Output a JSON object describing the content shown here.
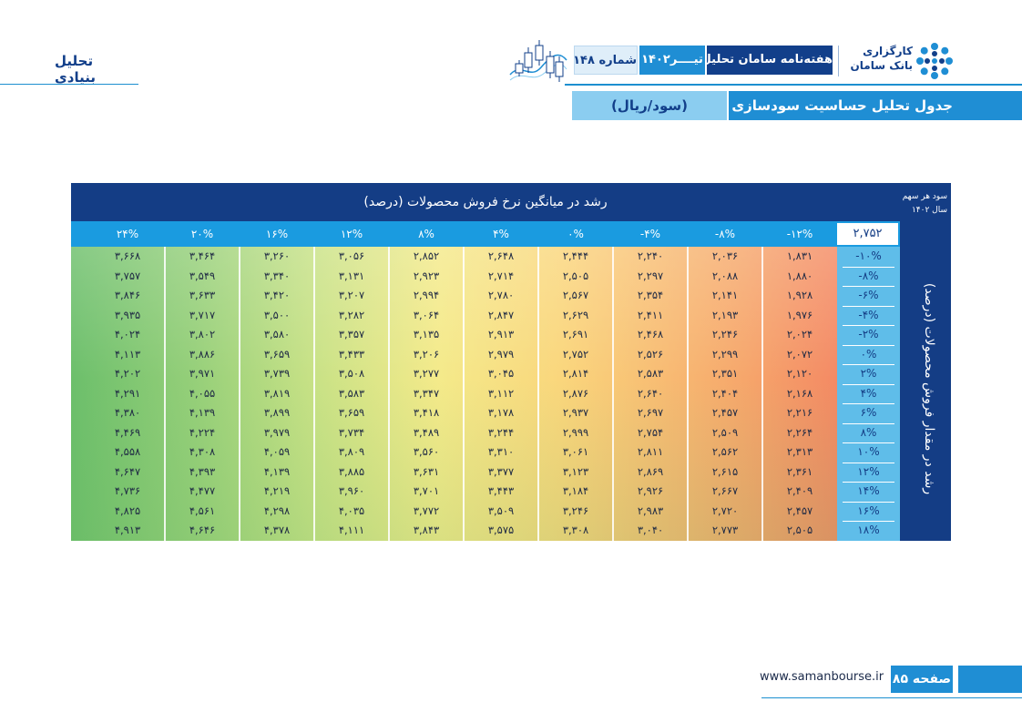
{
  "header": {
    "section_label": "تحلیل بنیادی",
    "logo_line1": "کارگزاری",
    "logo_line2": "بانک سامان",
    "weekly_title": "هفته‌نامه سامان تحلیل",
    "month": "تیــــر۱۴۰۲",
    "issue": "شماره ۱۴۸",
    "doc_title": "جدول تحلیل حساسیت سودسازی",
    "unit": "(سود/ریال)"
  },
  "table": {
    "top_title": "رشد در میانگین نرخ فروش محصولات (درصد)",
    "eps_label_line1": "سود هر سهم",
    "eps_label_line2": "سال ۱۴۰۲",
    "side_title": "رشد در مقدار فروش محصولات (درصد)",
    "base_value": "۲,۷۵۲",
    "col_headers": [
      "-۱۲%",
      "-۸%",
      "-۴%",
      "۰%",
      "۴%",
      "۸%",
      "۱۲%",
      "۱۶%",
      "۲۰%",
      "۲۴%"
    ],
    "row_headers": [
      "-۱۰%",
      "-۸%",
      "-۶%",
      "-۴%",
      "-۲%",
      "۰%",
      "۲%",
      "۴%",
      "۶%",
      "۸%",
      "۱۰%",
      "۱۲%",
      "۱۴%",
      "۱۶%",
      "۱۸%"
    ],
    "rows": [
      [
        "۱,۸۳۱",
        "۲,۰۳۶",
        "۲,۲۴۰",
        "۲,۴۴۴",
        "۲,۶۴۸",
        "۲,۸۵۲",
        "۳,۰۵۶",
        "۳,۲۶۰",
        "۳,۴۶۴",
        "۳,۶۶۸"
      ],
      [
        "۱,۸۸۰",
        "۲,۰۸۸",
        "۲,۲۹۷",
        "۲,۵۰۵",
        "۲,۷۱۴",
        "۲,۹۲۳",
        "۳,۱۳۱",
        "۳,۳۴۰",
        "۳,۵۴۹",
        "۳,۷۵۷"
      ],
      [
        "۱,۹۲۸",
        "۲,۱۴۱",
        "۲,۳۵۴",
        "۲,۵۶۷",
        "۲,۷۸۰",
        "۲,۹۹۴",
        "۳,۲۰۷",
        "۳,۴۲۰",
        "۳,۶۳۳",
        "۳,۸۴۶"
      ],
      [
        "۱,۹۷۶",
        "۲,۱۹۳",
        "۲,۴۱۱",
        "۲,۶۲۹",
        "۲,۸۴۷",
        "۳,۰۶۴",
        "۳,۲۸۲",
        "۳,۵۰۰",
        "۳,۷۱۷",
        "۳,۹۳۵"
      ],
      [
        "۲,۰۲۴",
        "۲,۲۴۶",
        "۲,۴۶۸",
        "۲,۶۹۱",
        "۲,۹۱۳",
        "۳,۱۳۵",
        "۳,۳۵۷",
        "۳,۵۸۰",
        "۳,۸۰۲",
        "۴,۰۲۴"
      ],
      [
        "۲,۰۷۲",
        "۲,۲۹۹",
        "۲,۵۲۶",
        "۲,۷۵۲",
        "۲,۹۷۹",
        "۳,۲۰۶",
        "۳,۴۳۳",
        "۳,۶۵۹",
        "۳,۸۸۶",
        "۴,۱۱۳"
      ],
      [
        "۲,۱۲۰",
        "۲,۳۵۱",
        "۲,۵۸۳",
        "۲,۸۱۴",
        "۳,۰۴۵",
        "۳,۲۷۷",
        "۳,۵۰۸",
        "۳,۷۳۹",
        "۳,۹۷۱",
        "۴,۲۰۲"
      ],
      [
        "۲,۱۶۸",
        "۲,۴۰۴",
        "۲,۶۴۰",
        "۲,۸۷۶",
        "۳,۱۱۲",
        "۳,۳۴۷",
        "۳,۵۸۳",
        "۳,۸۱۹",
        "۴,۰۵۵",
        "۴,۲۹۱"
      ],
      [
        "۲,۲۱۶",
        "۲,۴۵۷",
        "۲,۶۹۷",
        "۲,۹۳۷",
        "۳,۱۷۸",
        "۳,۴۱۸",
        "۳,۶۵۹",
        "۳,۸۹۹",
        "۴,۱۳۹",
        "۴,۳۸۰"
      ],
      [
        "۲,۲۶۴",
        "۲,۵۰۹",
        "۲,۷۵۴",
        "۲,۹۹۹",
        "۳,۲۴۴",
        "۳,۴۸۹",
        "۳,۷۳۴",
        "۳,۹۷۹",
        "۴,۲۲۴",
        "۴,۴۶۹"
      ],
      [
        "۲,۳۱۳",
        "۲,۵۶۲",
        "۲,۸۱۱",
        "۳,۰۶۱",
        "۳,۳۱۰",
        "۳,۵۶۰",
        "۳,۸۰۹",
        "۴,۰۵۹",
        "۴,۳۰۸",
        "۴,۵۵۸"
      ],
      [
        "۲,۳۶۱",
        "۲,۶۱۵",
        "۲,۸۶۹",
        "۳,۱۲۳",
        "۳,۳۷۷",
        "۳,۶۳۱",
        "۳,۸۸۵",
        "۴,۱۳۹",
        "۴,۳۹۳",
        "۴,۶۴۷"
      ],
      [
        "۲,۴۰۹",
        "۲,۶۶۷",
        "۲,۹۲۶",
        "۳,۱۸۴",
        "۳,۴۴۳",
        "۳,۷۰۱",
        "۳,۹۶۰",
        "۴,۲۱۹",
        "۴,۴۷۷",
        "۴,۷۳۶"
      ],
      [
        "۲,۴۵۷",
        "۲,۷۲۰",
        "۲,۹۸۳",
        "۳,۲۴۶",
        "۳,۵۰۹",
        "۳,۷۷۲",
        "۴,۰۳۵",
        "۴,۲۹۸",
        "۴,۵۶۱",
        "۴,۸۲۵"
      ],
      [
        "۲,۵۰۵",
        "۲,۷۷۳",
        "۳,۰۴۰",
        "۳,۳۰۸",
        "۳,۵۷۵",
        "۳,۸۴۳",
        "۴,۱۱۱",
        "۴,۳۷۸",
        "۴,۶۴۶",
        "۴,۹۱۳"
      ]
    ]
  },
  "footer": {
    "url": "www.samanbourse.ir",
    "page_label": "صفحه ۸۵"
  },
  "colors": {
    "navy": "#143d85",
    "blue": "#1f8ed4",
    "light_blue": "#8bcdf0",
    "low": "#f48a64",
    "mid": "#fad67c",
    "high": "#6cbf6b"
  }
}
